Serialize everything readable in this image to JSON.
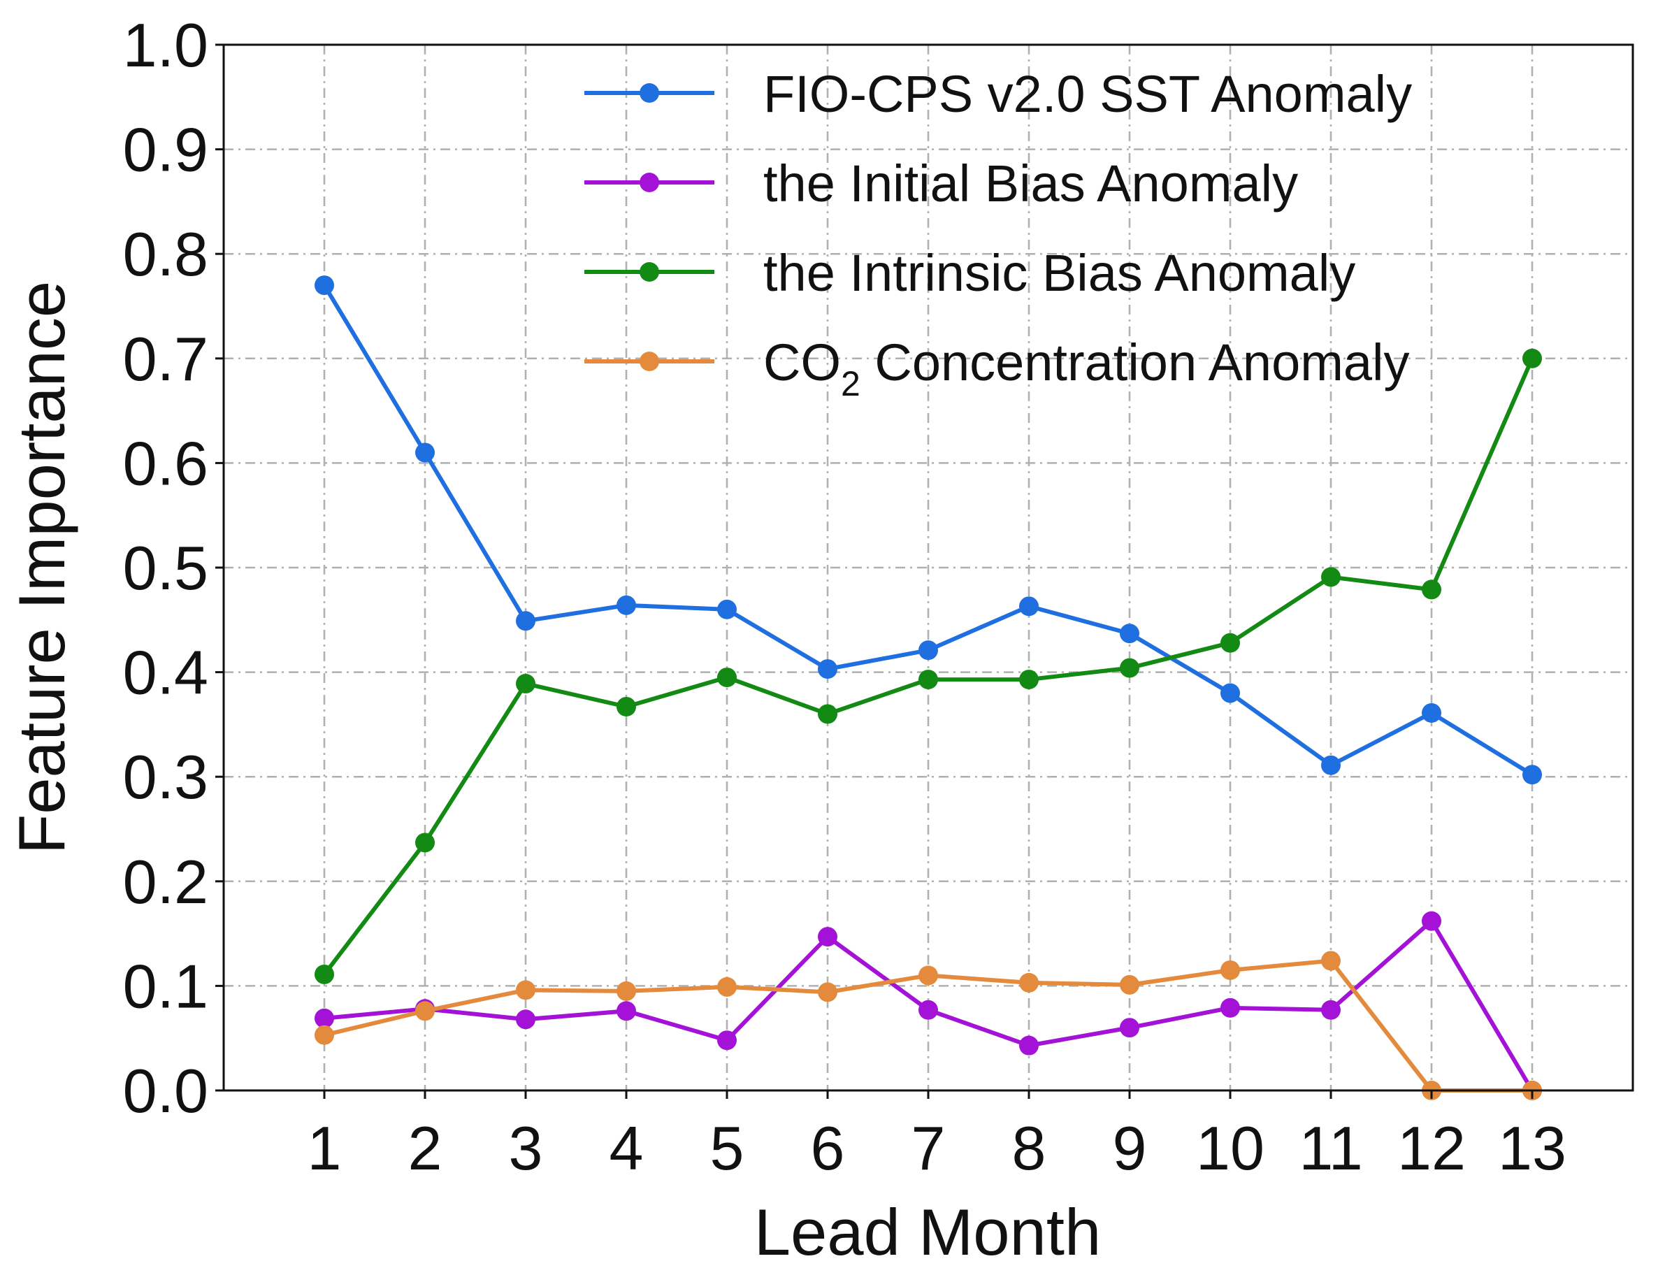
{
  "chart_data": {
    "type": "line",
    "title": "",
    "xlabel": "Lead Month",
    "ylabel": "Feature Importance",
    "x": [
      1,
      2,
      3,
      4,
      5,
      6,
      7,
      8,
      9,
      10,
      11,
      12,
      13
    ],
    "xticks": [
      "1",
      "2",
      "3",
      "4",
      "5",
      "6",
      "7",
      "8",
      "9",
      "10",
      "11",
      "12",
      "13"
    ],
    "xlim": [
      0,
      14
    ],
    "ylim": [
      0.0,
      1.0
    ],
    "yticks": [
      "0.0",
      "0.1",
      "0.2",
      "0.3",
      "0.4",
      "0.5",
      "0.6",
      "0.7",
      "0.8",
      "0.9",
      "1.0"
    ],
    "grid": true,
    "legend_position": "top-right",
    "series": [
      {
        "name": "FIO-CPS v2.0 SST Anomaly",
        "legend_parts": [
          "FIO-CPS v2.0 SST Anomaly"
        ],
        "color": "#1f6fe0",
        "values": [
          0.77,
          0.61,
          0.449,
          0.464,
          0.46,
          0.403,
          0.421,
          0.463,
          0.437,
          0.38,
          0.311,
          0.361,
          0.302
        ]
      },
      {
        "name": "the Initial Bias Anomaly",
        "legend_parts": [
          "the Initial Bias Anomaly"
        ],
        "color": "#a312d6",
        "values": [
          0.069,
          0.078,
          0.068,
          0.076,
          0.048,
          0.147,
          0.077,
          0.043,
          0.06,
          0.079,
          0.077,
          0.162,
          0.0
        ]
      },
      {
        "name": "the Intrinsic Bias Anomaly",
        "legend_parts": [
          "the Intrinsic Bias Anomaly"
        ],
        "color": "#138a13",
        "values": [
          0.111,
          0.237,
          0.389,
          0.367,
          0.395,
          0.36,
          0.393,
          0.393,
          0.404,
          0.428,
          0.491,
          0.479,
          0.7
        ]
      },
      {
        "name": "CO2 Concentration Anomaly",
        "legend_parts": [
          "CO",
          "2",
          " Concentration Anomaly"
        ],
        "color": "#e48a3c",
        "values": [
          0.053,
          0.076,
          0.096,
          0.095,
          0.099,
          0.094,
          0.11,
          0.103,
          0.101,
          0.115,
          0.124,
          0.0,
          0.0
        ]
      }
    ]
  }
}
